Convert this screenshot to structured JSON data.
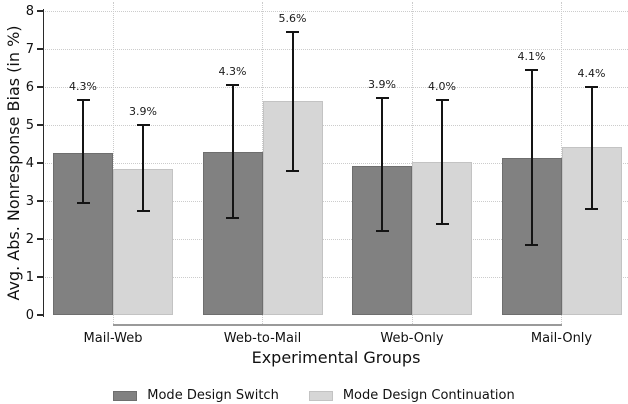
{
  "chart_data": {
    "type": "bar",
    "title": "",
    "xlabel": "Experimental Groups",
    "ylabel": "Avg. Abs. Nonresponse Bias (in %)",
    "ylim": [
      0,
      8
    ],
    "yticks": [
      0,
      1,
      2,
      3,
      4,
      5,
      6,
      7,
      8
    ],
    "categories": [
      "Mail-Web",
      "Web-to-Mail",
      "Web-Only",
      "Mail-Only"
    ],
    "series": [
      {
        "name": "Mode Design Switch",
        "color": "#818181",
        "border_color": "#6e6e6e",
        "values": [
          4.27,
          4.3,
          3.93,
          4.12
        ],
        "value_labels": [
          "4.3%",
          "4.3%",
          "3.9%",
          "4.1%"
        ],
        "ci_low": [
          2.95,
          2.55,
          2.2,
          1.85
        ],
        "ci_high": [
          5.65,
          6.05,
          5.7,
          6.45
        ]
      },
      {
        "name": "Mode Design Continuation",
        "color": "#d6d6d6",
        "border_color": "#c3c3c3",
        "values": [
          3.85,
          5.62,
          4.02,
          4.42
        ],
        "value_labels": [
          "3.9%",
          "5.6%",
          "4.0%",
          "4.4%"
        ],
        "ci_low": [
          2.75,
          3.8,
          2.4,
          2.8
        ],
        "ci_high": [
          5.0,
          7.45,
          5.65,
          6.0
        ]
      }
    ],
    "error_bar_color": "#141414",
    "grid": {
      "horizontal": "dotted",
      "vertical": "dotted-at-group-centers",
      "color": "#cccccc"
    },
    "axis_color": "#2a2a2a",
    "x_axis_line_color": "#9a9a9a",
    "legend_position": "bottom-center"
  }
}
